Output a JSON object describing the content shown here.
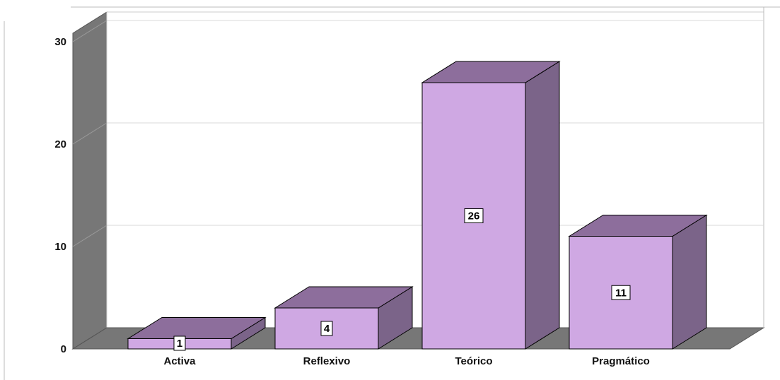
{
  "chart_data": {
    "type": "bar",
    "title": "",
    "xlabel": "",
    "ylabel": "",
    "categories": [
      "Activa",
      "Reflexivo",
      "Teórico",
      "Pragmático"
    ],
    "values": [
      1,
      4,
      26,
      11
    ],
    "data_labels": [
      "1",
      "4",
      "26",
      "11"
    ],
    "ylim": [
      0,
      30
    ],
    "yticks": [
      "0",
      "10",
      "20",
      "30"
    ],
    "grid": true,
    "legend": "none",
    "style": "3d",
    "colors": {
      "bar_front": "#cfa8e3",
      "bar_top": "#8d6e9c",
      "bar_side": "#7b6489",
      "wall": "#777777",
      "floor": "#777777",
      "gridline": "#d8d8d8"
    }
  }
}
